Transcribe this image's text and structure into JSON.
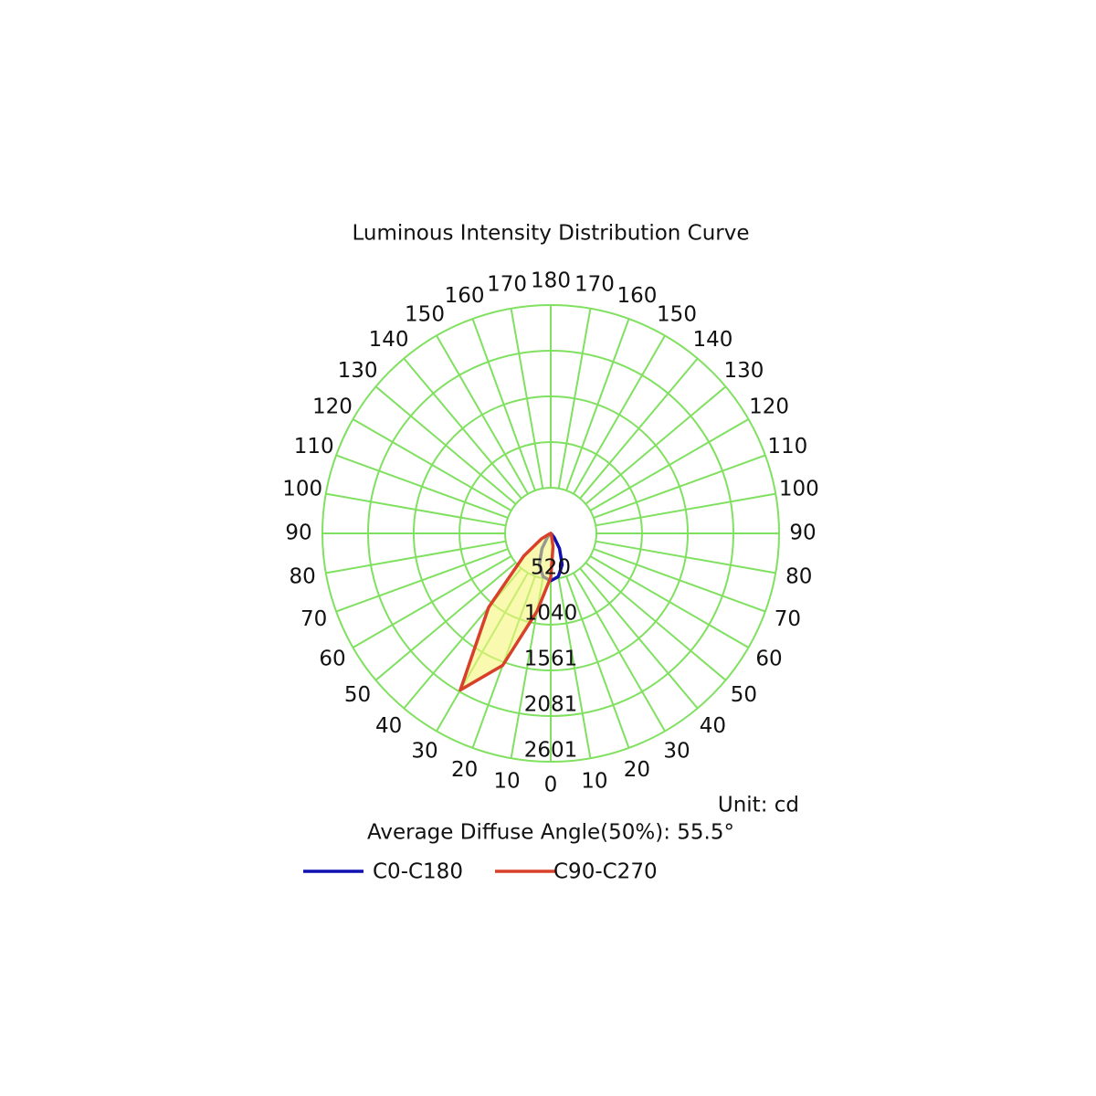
{
  "chart_data": {
    "type": "polar",
    "title": "Luminous Intensity Distribution Curve",
    "angles": [
      -90,
      -80,
      -70,
      -60,
      -50,
      -40,
      -30,
      -20,
      -10,
      0,
      10,
      20,
      30,
      40,
      50,
      60,
      70,
      80,
      90
    ],
    "series": [
      {
        "name": "C0-C180",
        "color": "#1010b0",
        "fill": "none",
        "values": [
          0,
          0,
          0,
          0,
          10,
          60,
          200,
          380,
          500,
          540,
          500,
          380,
          200,
          60,
          10,
          0,
          0,
          0,
          0
        ]
      },
      {
        "name": "C90-C270",
        "color": "#d8402a",
        "fill": "#f5f57a",
        "values": [
          0,
          0,
          20,
          120,
          400,
          1100,
          2060,
          1600,
          900,
          500,
          150,
          20,
          0,
          0,
          0,
          0,
          0,
          0,
          0
        ]
      }
    ],
    "rlim": [
      0,
      2601
    ],
    "rticks": [
      520,
      1040,
      1561,
      2081,
      2601
    ],
    "angleticks": [
      0,
      10,
      20,
      30,
      40,
      50,
      60,
      70,
      80,
      90,
      100,
      110,
      120,
      130,
      140,
      150,
      160,
      170,
      180
    ],
    "grid_color": "#80e060",
    "unit_label": "Unit: cd",
    "note": "Average Diffuse Angle(50%): 55.5°"
  }
}
